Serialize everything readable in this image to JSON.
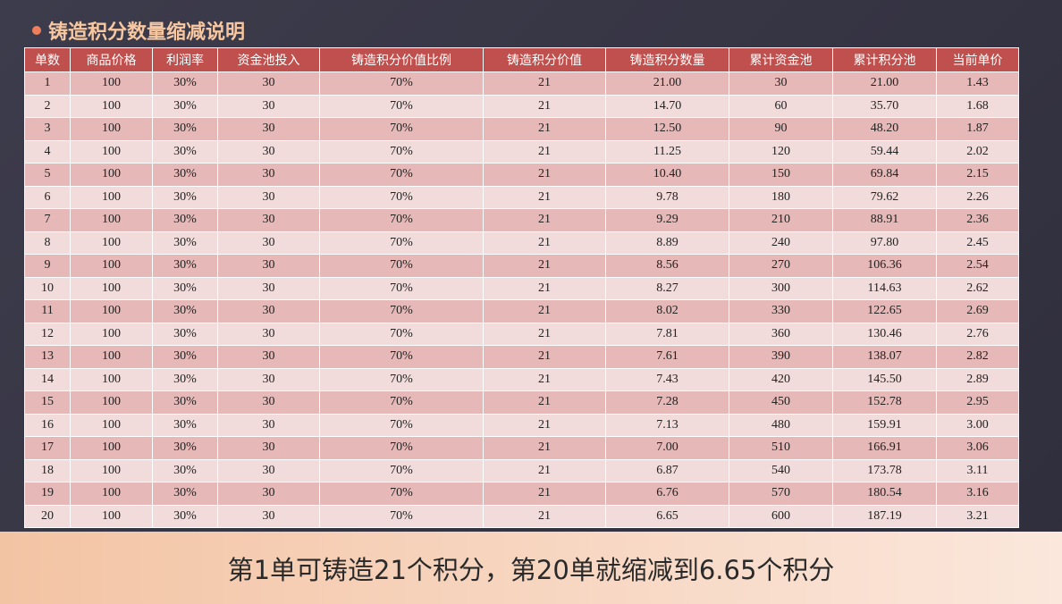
{
  "title": "铸造积分数量缩减说明",
  "table": {
    "header": [
      "单数",
      "商品价格",
      "利润率",
      "资金池投入",
      "铸造积分价值比例",
      "铸造积分价值",
      "铸造积分数量",
      "累计资金池",
      "累计积分池",
      "当前单价"
    ],
    "rows": [
      [
        "1",
        "100",
        "30%",
        "30",
        "70%",
        "21",
        "21.00",
        "30",
        "21.00",
        "1.43"
      ],
      [
        "2",
        "100",
        "30%",
        "30",
        "70%",
        "21",
        "14.70",
        "60",
        "35.70",
        "1.68"
      ],
      [
        "3",
        "100",
        "30%",
        "30",
        "70%",
        "21",
        "12.50",
        "90",
        "48.20",
        "1.87"
      ],
      [
        "4",
        "100",
        "30%",
        "30",
        "70%",
        "21",
        "11.25",
        "120",
        "59.44",
        "2.02"
      ],
      [
        "5",
        "100",
        "30%",
        "30",
        "70%",
        "21",
        "10.40",
        "150",
        "69.84",
        "2.15"
      ],
      [
        "6",
        "100",
        "30%",
        "30",
        "70%",
        "21",
        "9.78",
        "180",
        "79.62",
        "2.26"
      ],
      [
        "7",
        "100",
        "30%",
        "30",
        "70%",
        "21",
        "9.29",
        "210",
        "88.91",
        "2.36"
      ],
      [
        "8",
        "100",
        "30%",
        "30",
        "70%",
        "21",
        "8.89",
        "240",
        "97.80",
        "2.45"
      ],
      [
        "9",
        "100",
        "30%",
        "30",
        "70%",
        "21",
        "8.56",
        "270",
        "106.36",
        "2.54"
      ],
      [
        "10",
        "100",
        "30%",
        "30",
        "70%",
        "21",
        "8.27",
        "300",
        "114.63",
        "2.62"
      ],
      [
        "11",
        "100",
        "30%",
        "30",
        "70%",
        "21",
        "8.02",
        "330",
        "122.65",
        "2.69"
      ],
      [
        "12",
        "100",
        "30%",
        "30",
        "70%",
        "21",
        "7.81",
        "360",
        "130.46",
        "2.76"
      ],
      [
        "13",
        "100",
        "30%",
        "30",
        "70%",
        "21",
        "7.61",
        "390",
        "138.07",
        "2.82"
      ],
      [
        "14",
        "100",
        "30%",
        "30",
        "70%",
        "21",
        "7.43",
        "420",
        "145.50",
        "2.89"
      ],
      [
        "15",
        "100",
        "30%",
        "30",
        "70%",
        "21",
        "7.28",
        "450",
        "152.78",
        "2.95"
      ],
      [
        "16",
        "100",
        "30%",
        "30",
        "70%",
        "21",
        "7.13",
        "480",
        "159.91",
        "3.00"
      ],
      [
        "17",
        "100",
        "30%",
        "30",
        "70%",
        "21",
        "7.00",
        "510",
        "166.91",
        "3.06"
      ],
      [
        "18",
        "100",
        "30%",
        "30",
        "70%",
        "21",
        "6.87",
        "540",
        "173.78",
        "3.11"
      ],
      [
        "19",
        "100",
        "30%",
        "30",
        "70%",
        "21",
        "6.76",
        "570",
        "180.54",
        "3.16"
      ],
      [
        "20",
        "100",
        "30%",
        "30",
        "70%",
        "21",
        "6.65",
        "600",
        "187.19",
        "3.21"
      ]
    ]
  },
  "caption": "第1单可铸造21个积分，第20单就缩减到6.65个积分"
}
